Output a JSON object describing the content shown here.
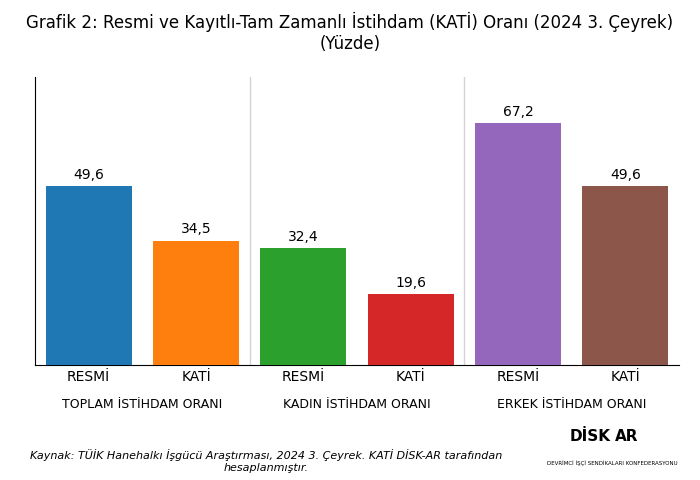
{
  "chart_data": {
    "type": "bar",
    "title": "Grafik 2: Resmi ve Kayıtlı-Tam Zamanlı İstihdam (KATİ) Oranı (2024 3. Çeyrek) (Yüzde)",
    "groups": [
      {
        "name": "TOPLAM İSTİHDAM ORANI",
        "categories": [
          "RESMİ",
          "KATİ"
        ],
        "values": [
          49.6,
          34.5
        ],
        "value_labels": [
          "49,6",
          "34,5"
        ]
      },
      {
        "name": "KADIN İSTİHDAM ORANI",
        "categories": [
          "RESMİ",
          "KATİ"
        ],
        "values": [
          32.4,
          19.6
        ],
        "value_labels": [
          "32,4",
          "19,6"
        ]
      },
      {
        "name": "ERKEK İSTİHDAM ORANI",
        "categories": [
          "RESMİ",
          "KATİ"
        ],
        "values": [
          67.2,
          49.6
        ],
        "value_labels": [
          "67,2",
          "49,6"
        ]
      }
    ],
    "ylim": [
      0,
      80
    ],
    "data_labels": true,
    "tick_labels": "x",
    "grid": false,
    "source": "Kaynak: TÜİK Hanehalkı İşgücü Araştırması, 2024 3. Çeyrek. KATİ DİSK-AR tarafından hesaplanmıştır.",
    "annotations": [
      "DİSK",
      "AR",
      "DEVRİMCİ İŞÇİ SENDİKALARI KONFEDERASYONU"
    ]
  }
}
